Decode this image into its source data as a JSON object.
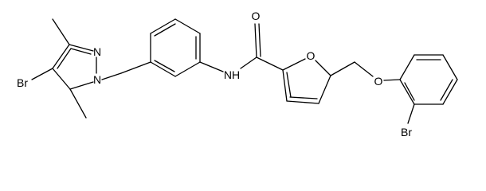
{
  "atoms": [
    {
      "label": "Br"
    },
    {
      "label": "N"
    },
    {
      "label": "N"
    },
    {
      "label": "NH"
    },
    {
      "label": "O"
    },
    {
      "label": "O"
    },
    {
      "label": "O"
    },
    {
      "label": "Br"
    }
  ]
}
